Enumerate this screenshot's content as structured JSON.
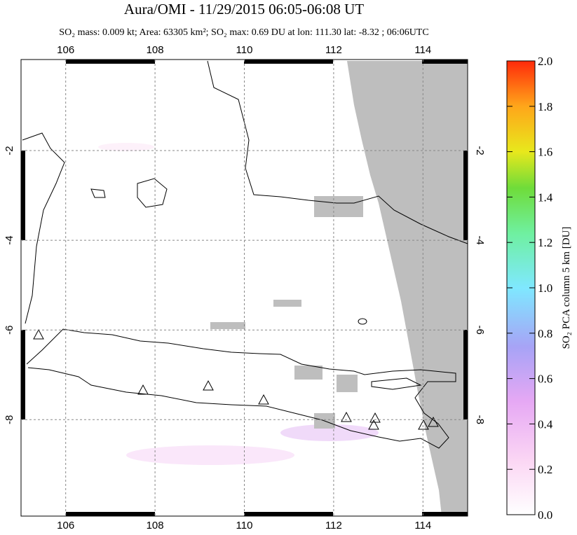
{
  "title": "Aura/OMI - 11/29/2015 06:05-06:08 UT",
  "subtitle": "SO₂ mass: 0.009 kt; Area: 63305 km²; SO₂ max: 0.69 DU at lon: 111.30 lat: -8.32 ; 06:06UTC",
  "map": {
    "xlim": [
      105,
      115
    ],
    "ylim": [
      -10.15,
      0.03
    ],
    "xticks": [
      106,
      108,
      110,
      112,
      114
    ],
    "yticks": [
      -2,
      -4,
      -6,
      -8
    ],
    "grid": true
  },
  "colorbar": {
    "label": "SO₂ PCA column 5 km [DU]",
    "lim": [
      0,
      2
    ],
    "ticks": [
      {
        "value": 0,
        "label": "0.0"
      },
      0.2,
      0.4,
      0.6,
      0.8,
      {
        "value": 1,
        "label": "1.0"
      },
      1.2,
      1.4,
      1.6,
      1.8,
      {
        "value": 2,
        "label": "2.0"
      }
    ]
  }
}
